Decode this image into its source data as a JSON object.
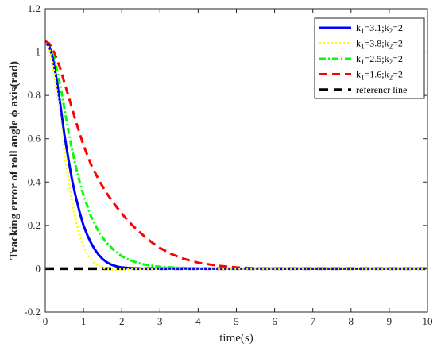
{
  "chart_data": {
    "type": "line",
    "xlabel": "time(s)",
    "ylabel": "Tracking error of roll angle ϕ axis(rad)",
    "xlim": [
      0,
      10
    ],
    "ylim": [
      -0.2,
      1.2
    ],
    "xticks": [
      "0",
      "1",
      "2",
      "3",
      "4",
      "5",
      "6",
      "7",
      "8",
      "9",
      "10"
    ],
    "yticks": [
      "-0.2",
      "0",
      "0.2",
      "0.4",
      "0.6",
      "0.8",
      "1",
      "1.2"
    ],
    "grid": false,
    "legend_position": "top-right",
    "series": [
      {
        "name": "k1=3.1;k2=2",
        "legend_parts": [
          "k",
          "1",
          "=3.1;k",
          "2",
          "=2"
        ],
        "color": "#0000ff",
        "style": "solid",
        "x": [
          0,
          0.1,
          0.2,
          0.3,
          0.4,
          0.5,
          0.6,
          0.7,
          0.8,
          0.9,
          1.0,
          1.1,
          1.2,
          1.3,
          1.4,
          1.5,
          1.6,
          1.7,
          1.8,
          1.9,
          2.0,
          2.2,
          2.5,
          3.0,
          3.5,
          4,
          5,
          6,
          7,
          8,
          9,
          10
        ],
        "y": [
          1.04,
          1.03,
          0.97,
          0.87,
          0.75,
          0.62,
          0.51,
          0.41,
          0.33,
          0.26,
          0.2,
          0.155,
          0.118,
          0.088,
          0.064,
          0.045,
          0.031,
          0.021,
          0.014,
          0.009,
          0.006,
          0.003,
          0.001,
          0,
          0,
          0,
          0,
          0,
          0,
          0,
          0,
          0
        ]
      },
      {
        "name": "k1=3.8;k2=2",
        "legend_parts": [
          "k",
          "1",
          "=3.8;k",
          "2",
          "=2"
        ],
        "color": "#ffff00",
        "style": "dotted",
        "x": [
          0,
          0.1,
          0.2,
          0.3,
          0.4,
          0.5,
          0.6,
          0.7,
          0.8,
          0.9,
          1.0,
          1.1,
          1.2,
          1.3,
          1.4,
          1.5,
          1.6,
          1.7,
          1.8,
          2.0,
          2.5,
          3,
          4,
          5,
          6,
          7,
          8,
          9,
          10
        ],
        "y": [
          1.04,
          1.02,
          0.94,
          0.82,
          0.68,
          0.54,
          0.42,
          0.31,
          0.22,
          0.155,
          0.105,
          0.068,
          0.042,
          0.024,
          0.012,
          0.004,
          0.0,
          -0.003,
          -0.004,
          -0.003,
          -0.001,
          0,
          0,
          0,
          0,
          0,
          0,
          0,
          0
        ]
      },
      {
        "name": "k1=2.5;k2=2",
        "legend_parts": [
          "k",
          "1",
          "=2.5;k",
          "2",
          "=2"
        ],
        "color": "#00ff00",
        "style": "dashdot",
        "x": [
          0,
          0.1,
          0.2,
          0.3,
          0.4,
          0.5,
          0.6,
          0.7,
          0.8,
          0.9,
          1.0,
          1.2,
          1.4,
          1.6,
          1.8,
          2.0,
          2.2,
          2.4,
          2.6,
          2.8,
          3.0,
          3.5,
          4.0,
          4.5,
          5,
          6,
          7,
          8,
          9,
          10
        ],
        "y": [
          1.04,
          1.03,
          0.99,
          0.92,
          0.84,
          0.74,
          0.64,
          0.55,
          0.47,
          0.4,
          0.34,
          0.24,
          0.17,
          0.12,
          0.085,
          0.058,
          0.04,
          0.028,
          0.019,
          0.013,
          0.009,
          0.004,
          0.002,
          0.001,
          0,
          0,
          0,
          0,
          0,
          0
        ]
      },
      {
        "name": "k1=1.6;k2=2",
        "legend_parts": [
          "k",
          "1",
          "=1.6;k",
          "2",
          "=2"
        ],
        "color": "#ff0000",
        "style": "dashed",
        "x": [
          0,
          0.1,
          0.2,
          0.3,
          0.4,
          0.5,
          0.6,
          0.8,
          1.0,
          1.2,
          1.4,
          1.6,
          1.8,
          2.0,
          2.2,
          2.4,
          2.6,
          2.8,
          3.0,
          3.3,
          3.6,
          4.0,
          4.5,
          5.0,
          5.5,
          6,
          7,
          8,
          9,
          10
        ],
        "y": [
          1.05,
          1.04,
          1.01,
          0.97,
          0.92,
          0.86,
          0.8,
          0.68,
          0.57,
          0.48,
          0.41,
          0.35,
          0.3,
          0.255,
          0.215,
          0.18,
          0.148,
          0.12,
          0.096,
          0.068,
          0.047,
          0.028,
          0.014,
          0.006,
          0.002,
          0,
          0,
          0,
          0,
          0
        ]
      },
      {
        "name": "referencr line",
        "legend_parts": [
          "referencr line"
        ],
        "color": "#000000",
        "style": "dashed-thick",
        "x": [
          0,
          10
        ],
        "y": [
          0,
          0
        ]
      }
    ]
  }
}
